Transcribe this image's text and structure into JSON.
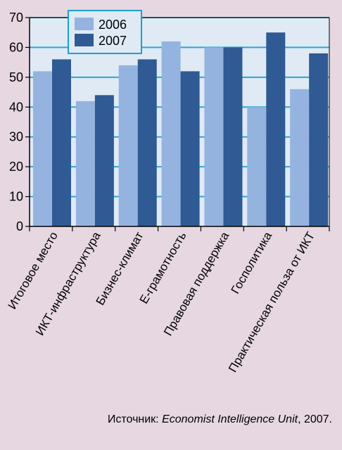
{
  "chart_data": {
    "type": "bar",
    "categories": [
      "Итоговое место",
      "ИКТ-инфраструктура",
      "Бизнес-климат",
      "E-грамотность",
      "Правовая поддержка",
      "Госполитика",
      "Практическая польза от ИКТ"
    ],
    "series": [
      {
        "name": "2006",
        "values": [
          52,
          42,
          54,
          62,
          60,
          40,
          46
        ]
      },
      {
        "name": "2007",
        "values": [
          56,
          44,
          56,
          52,
          60,
          65,
          58
        ]
      }
    ],
    "ylim": [
      0,
      70
    ],
    "yticks": [
      0,
      10,
      20,
      30,
      40,
      50,
      60,
      70
    ],
    "grid": true,
    "legend_position": "top-left",
    "colors": {
      "2006": "#95b3df",
      "2007": "#2f5a93",
      "plot_background": "#dfeaf5",
      "gridline": "#2aa7d6",
      "page_background": "#e6d7e1"
    }
  },
  "source": {
    "prefix": "Источник: ",
    "italic": "Economist Intelligence Unit",
    "suffix": ", 2007."
  }
}
